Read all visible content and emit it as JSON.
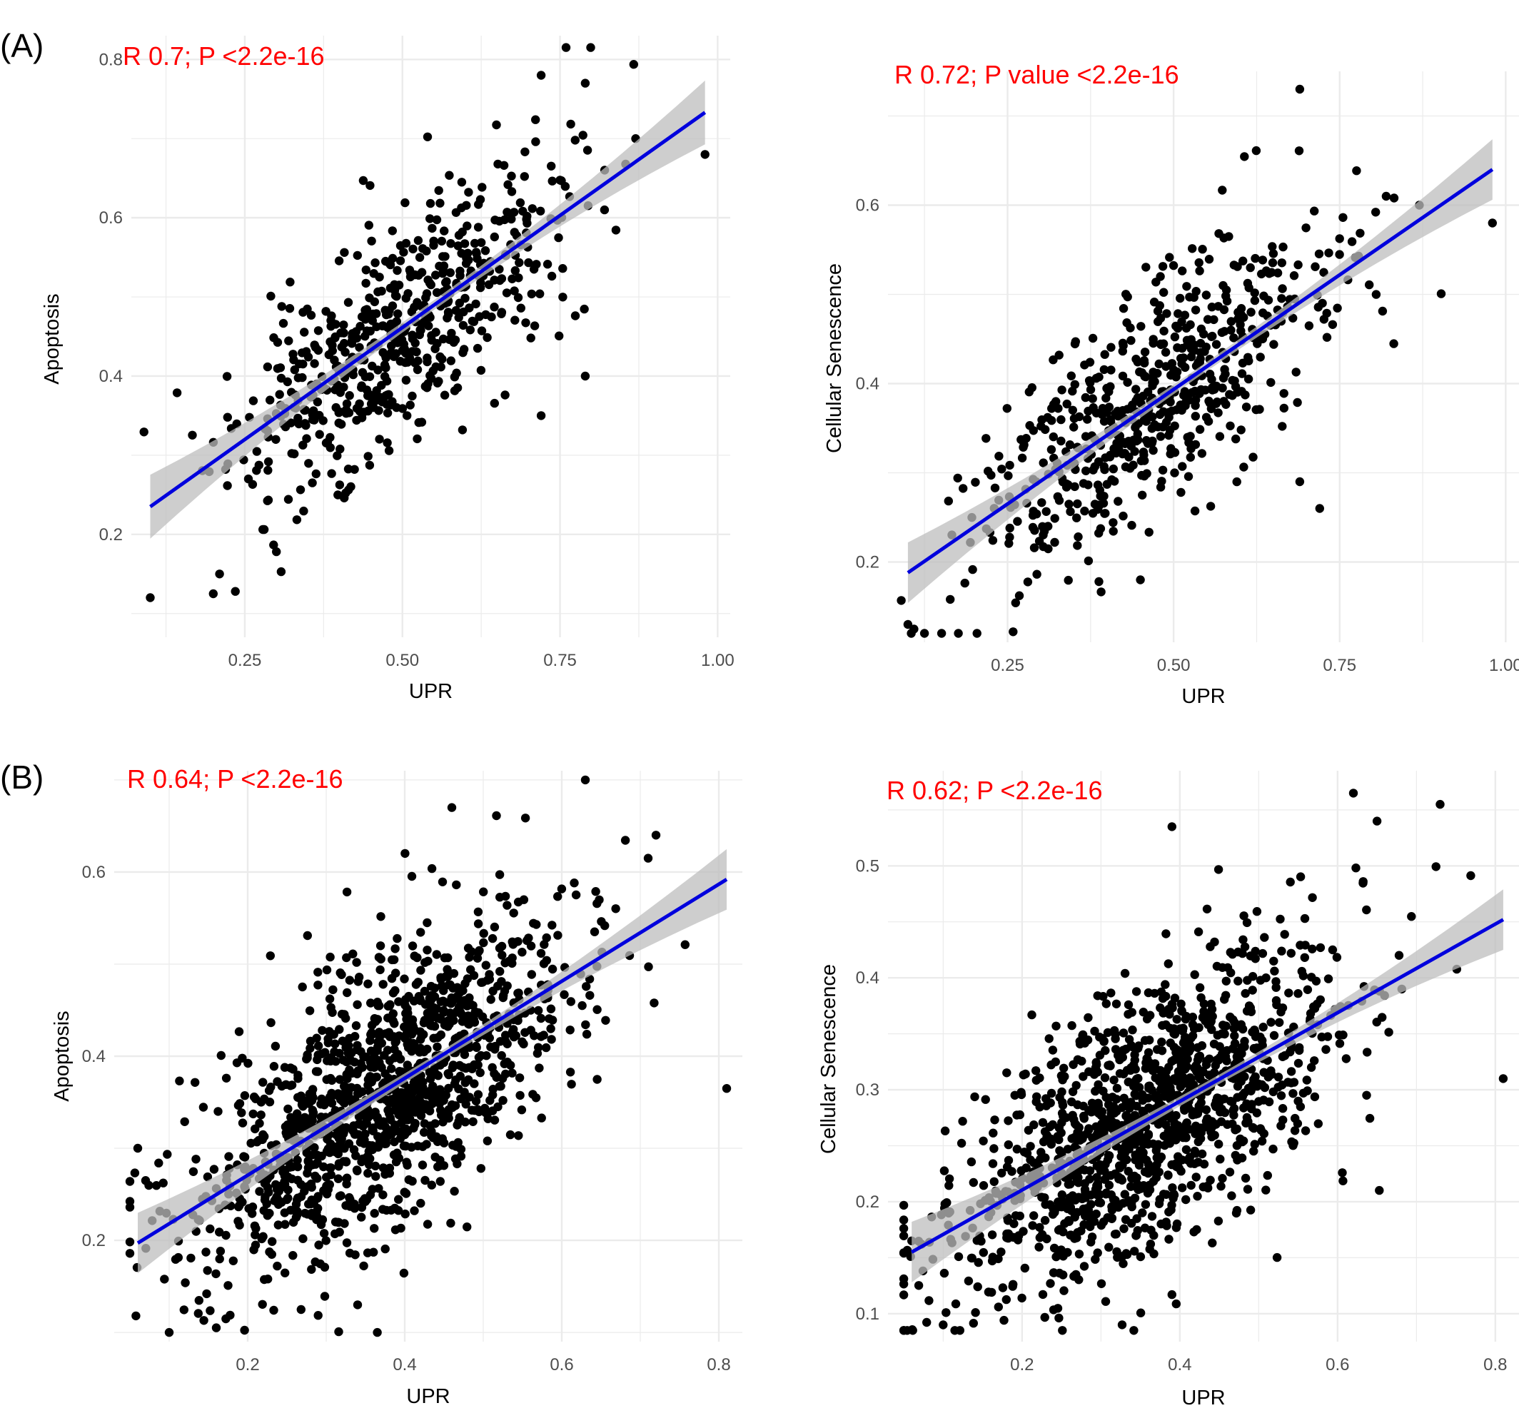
{
  "panel_labels": [
    "(A)",
    "(B)"
  ],
  "colors": {
    "points": "#000000",
    "fit_line": "#0000dd",
    "band": "#bdbdbd",
    "annotation": "#ff0000",
    "grid": "#ebebeb",
    "tick": "#4d4d4d"
  },
  "chart_data": [
    {
      "type": "scatter",
      "title": "",
      "annotation": "R 0.7; P <2.2e-16",
      "xlabel": "UPR",
      "ylabel": "Apoptosis",
      "xlim": [
        0.07,
        1.02
      ],
      "ylim": [
        0.07,
        0.83
      ],
      "xticks": [
        0.25,
        0.5,
        0.75,
        1.0
      ],
      "xtick_labels": [
        "0.25",
        "0.50",
        "0.75",
        "1.00"
      ],
      "yticks": [
        0.2,
        0.4,
        0.6,
        0.8
      ],
      "ytick_labels": [
        "0.2",
        "0.4",
        "0.6",
        "0.8"
      ],
      "fit": {
        "x": [
          0.1,
          0.98
        ],
        "y": [
          0.235,
          0.733
        ]
      },
      "n_points": 600,
      "slope": 0.566,
      "intercept": 0.178,
      "noise_sd": 0.07,
      "x_mean": 0.49,
      "x_sd": 0.13,
      "seed": 11,
      "outliers": [
        [
          0.1,
          0.12
        ],
        [
          0.2,
          0.125
        ],
        [
          0.21,
          0.15
        ],
        [
          0.235,
          0.128
        ],
        [
          0.98,
          0.68
        ],
        [
          0.87,
          0.7
        ],
        [
          0.79,
          0.77
        ],
        [
          0.72,
          0.78
        ],
        [
          0.79,
          0.4
        ],
        [
          0.72,
          0.35
        ]
      ],
      "grid": true
    },
    {
      "type": "scatter",
      "title": "",
      "annotation": "R 0.72; P value <2.2e-16",
      "xlabel": "UPR",
      "ylabel": "Cellular Senescence",
      "xlim": [
        0.07,
        1.02
      ],
      "ylim": [
        0.11,
        0.75
      ],
      "xticks": [
        0.25,
        0.5,
        0.75,
        1.0
      ],
      "xtick_labels": [
        "0.25",
        "0.50",
        "0.75",
        "1.00"
      ],
      "yticks": [
        0.2,
        0.4,
        0.6
      ],
      "ytick_labels": [
        "0.2",
        "0.4",
        "0.6"
      ],
      "fit": {
        "x": [
          0.1,
          0.98
        ],
        "y": [
          0.188,
          0.64
        ]
      },
      "n_points": 600,
      "slope": 0.514,
      "intercept": 0.137,
      "noise_sd": 0.062,
      "x_mean": 0.46,
      "x_sd": 0.13,
      "seed": 23,
      "outliers": [
        [
          0.1,
          0.13
        ],
        [
          0.98,
          0.58
        ],
        [
          0.69,
          0.73
        ],
        [
          0.87,
          0.6
        ],
        [
          0.82,
          0.61
        ],
        [
          0.72,
          0.26
        ],
        [
          0.69,
          0.29
        ],
        [
          0.45,
          0.18
        ]
      ],
      "grid": true
    },
    {
      "type": "scatter",
      "title": "",
      "annotation": "R 0.64; P <2.2e-16",
      "xlabel": "UPR",
      "ylabel": "Apoptosis",
      "xlim": [
        0.03,
        0.83
      ],
      "ylim": [
        0.09,
        0.71
      ],
      "xticks": [
        0.2,
        0.4,
        0.6,
        0.8
      ],
      "xtick_labels": [
        "0.2",
        "0.4",
        "0.6",
        "0.8"
      ],
      "yticks": [
        0.2,
        0.4,
        0.6
      ],
      "ytick_labels": [
        "0.2",
        "0.4",
        "0.6"
      ],
      "fit": {
        "x": [
          0.06,
          0.81
        ],
        "y": [
          0.197,
          0.592
        ]
      },
      "n_points": 1300,
      "slope": 0.527,
      "intercept": 0.165,
      "noise_sd": 0.072,
      "x_mean": 0.37,
      "x_sd": 0.12,
      "seed": 37,
      "outliers": [
        [
          0.1,
          0.1
        ],
        [
          0.16,
          0.105
        ],
        [
          0.06,
          0.3
        ],
        [
          0.07,
          0.265
        ],
        [
          0.81,
          0.365
        ],
        [
          0.63,
          0.7
        ],
        [
          0.46,
          0.67
        ],
        [
          0.72,
          0.64
        ],
        [
          0.71,
          0.615
        ],
        [
          0.34,
          0.13
        ]
      ],
      "grid": true
    },
    {
      "type": "scatter",
      "title": "",
      "annotation": "R 0.62; P <2.2e-16",
      "xlabel": "UPR",
      "ylabel": "Cellular Senescence",
      "xlim": [
        0.03,
        0.83
      ],
      "ylim": [
        0.075,
        0.585
      ],
      "xticks": [
        0.2,
        0.4,
        0.6,
        0.8
      ],
      "xtick_labels": [
        "0.2",
        "0.4",
        "0.6",
        "0.8"
      ],
      "yticks": [
        0.1,
        0.2,
        0.3,
        0.4,
        0.5
      ],
      "ytick_labels": [
        "0.1",
        "0.2",
        "0.3",
        "0.4",
        "0.5"
      ],
      "fit": {
        "x": [
          0.06,
          0.81
        ],
        "y": [
          0.155,
          0.452
        ]
      },
      "n_points": 1300,
      "slope": 0.396,
      "intercept": 0.131,
      "noise_sd": 0.058,
      "x_mean": 0.36,
      "x_sd": 0.12,
      "seed": 53,
      "outliers": [
        [
          0.06,
          0.165
        ],
        [
          0.1,
          0.09
        ],
        [
          0.81,
          0.31
        ],
        [
          0.62,
          0.565
        ],
        [
          0.73,
          0.555
        ],
        [
          0.39,
          0.535
        ],
        [
          0.65,
          0.54
        ],
        [
          0.39,
          0.117
        ]
      ],
      "grid": true
    }
  ]
}
